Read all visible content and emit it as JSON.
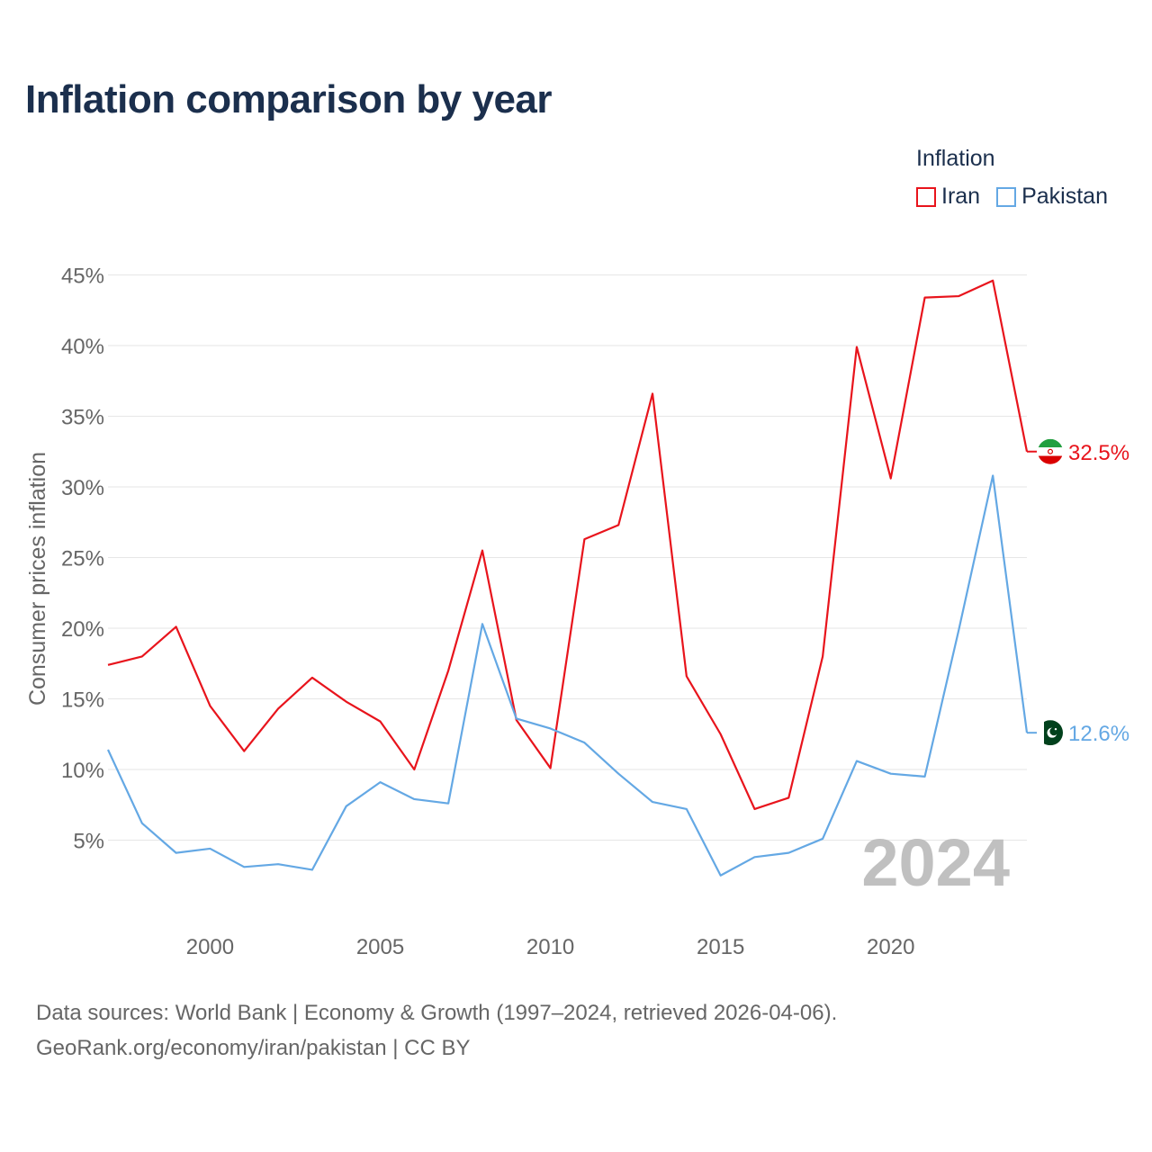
{
  "title": "Inflation comparison by year",
  "legend": {
    "title": "Inflation",
    "items": [
      {
        "name": "Iran",
        "color": "#e8141c"
      },
      {
        "name": "Pakistan",
        "color": "#64a8e4"
      }
    ]
  },
  "footer": {
    "line1": "Data sources: World Bank | Economy & Growth (1997–2024, retrieved 2026-04-06).",
    "line2": "GeoRank.org/economy/iran/pakistan | CC BY"
  },
  "chart_data": {
    "type": "line",
    "title": "Inflation comparison by year",
    "xlabel": "",
    "ylabel": "Consumer prices inflation",
    "x": [
      1997,
      1998,
      1999,
      2000,
      2001,
      2002,
      2003,
      2004,
      2005,
      2006,
      2007,
      2008,
      2009,
      2010,
      2011,
      2012,
      2013,
      2014,
      2015,
      2016,
      2017,
      2018,
      2019,
      2020,
      2021,
      2022,
      2023,
      2024
    ],
    "xticks": [
      2000,
      2005,
      2010,
      2015,
      2020
    ],
    "xtick_labels": [
      "2000",
      "2005",
      "2010",
      "2015",
      "2020"
    ],
    "xlim": [
      1997,
      2024
    ],
    "yticks": [
      5,
      10,
      15,
      20,
      25,
      30,
      35,
      40,
      45
    ],
    "ytick_labels": [
      "5%",
      "10%",
      "15%",
      "20%",
      "25%",
      "30%",
      "35%",
      "40%",
      "45%"
    ],
    "ylim": [
      0,
      45
    ],
    "grid": true,
    "year_watermark": "2024",
    "series": [
      {
        "name": "Iran",
        "color": "#e8141c",
        "values": [
          17.4,
          18.0,
          20.1,
          14.5,
          11.3,
          14.3,
          16.5,
          14.8,
          13.4,
          10.0,
          17.0,
          25.5,
          13.5,
          10.1,
          26.3,
          27.3,
          36.6,
          16.6,
          12.5,
          7.2,
          8.0,
          18.0,
          39.9,
          30.6,
          43.4,
          43.5,
          44.6,
          32.5
        ],
        "end_label": "32.5%",
        "flag": "iran-flag"
      },
      {
        "name": "Pakistan",
        "color": "#64a8e4",
        "values": [
          11.4,
          6.2,
          4.1,
          4.4,
          3.1,
          3.3,
          2.9,
          7.4,
          9.1,
          7.9,
          7.6,
          20.3,
          13.6,
          12.9,
          11.9,
          9.7,
          7.7,
          7.2,
          2.5,
          3.8,
          4.1,
          5.1,
          10.6,
          9.7,
          9.5,
          19.9,
          30.8,
          12.6
        ],
        "end_label": "12.6%",
        "flag": "pakistan-flag"
      }
    ]
  }
}
